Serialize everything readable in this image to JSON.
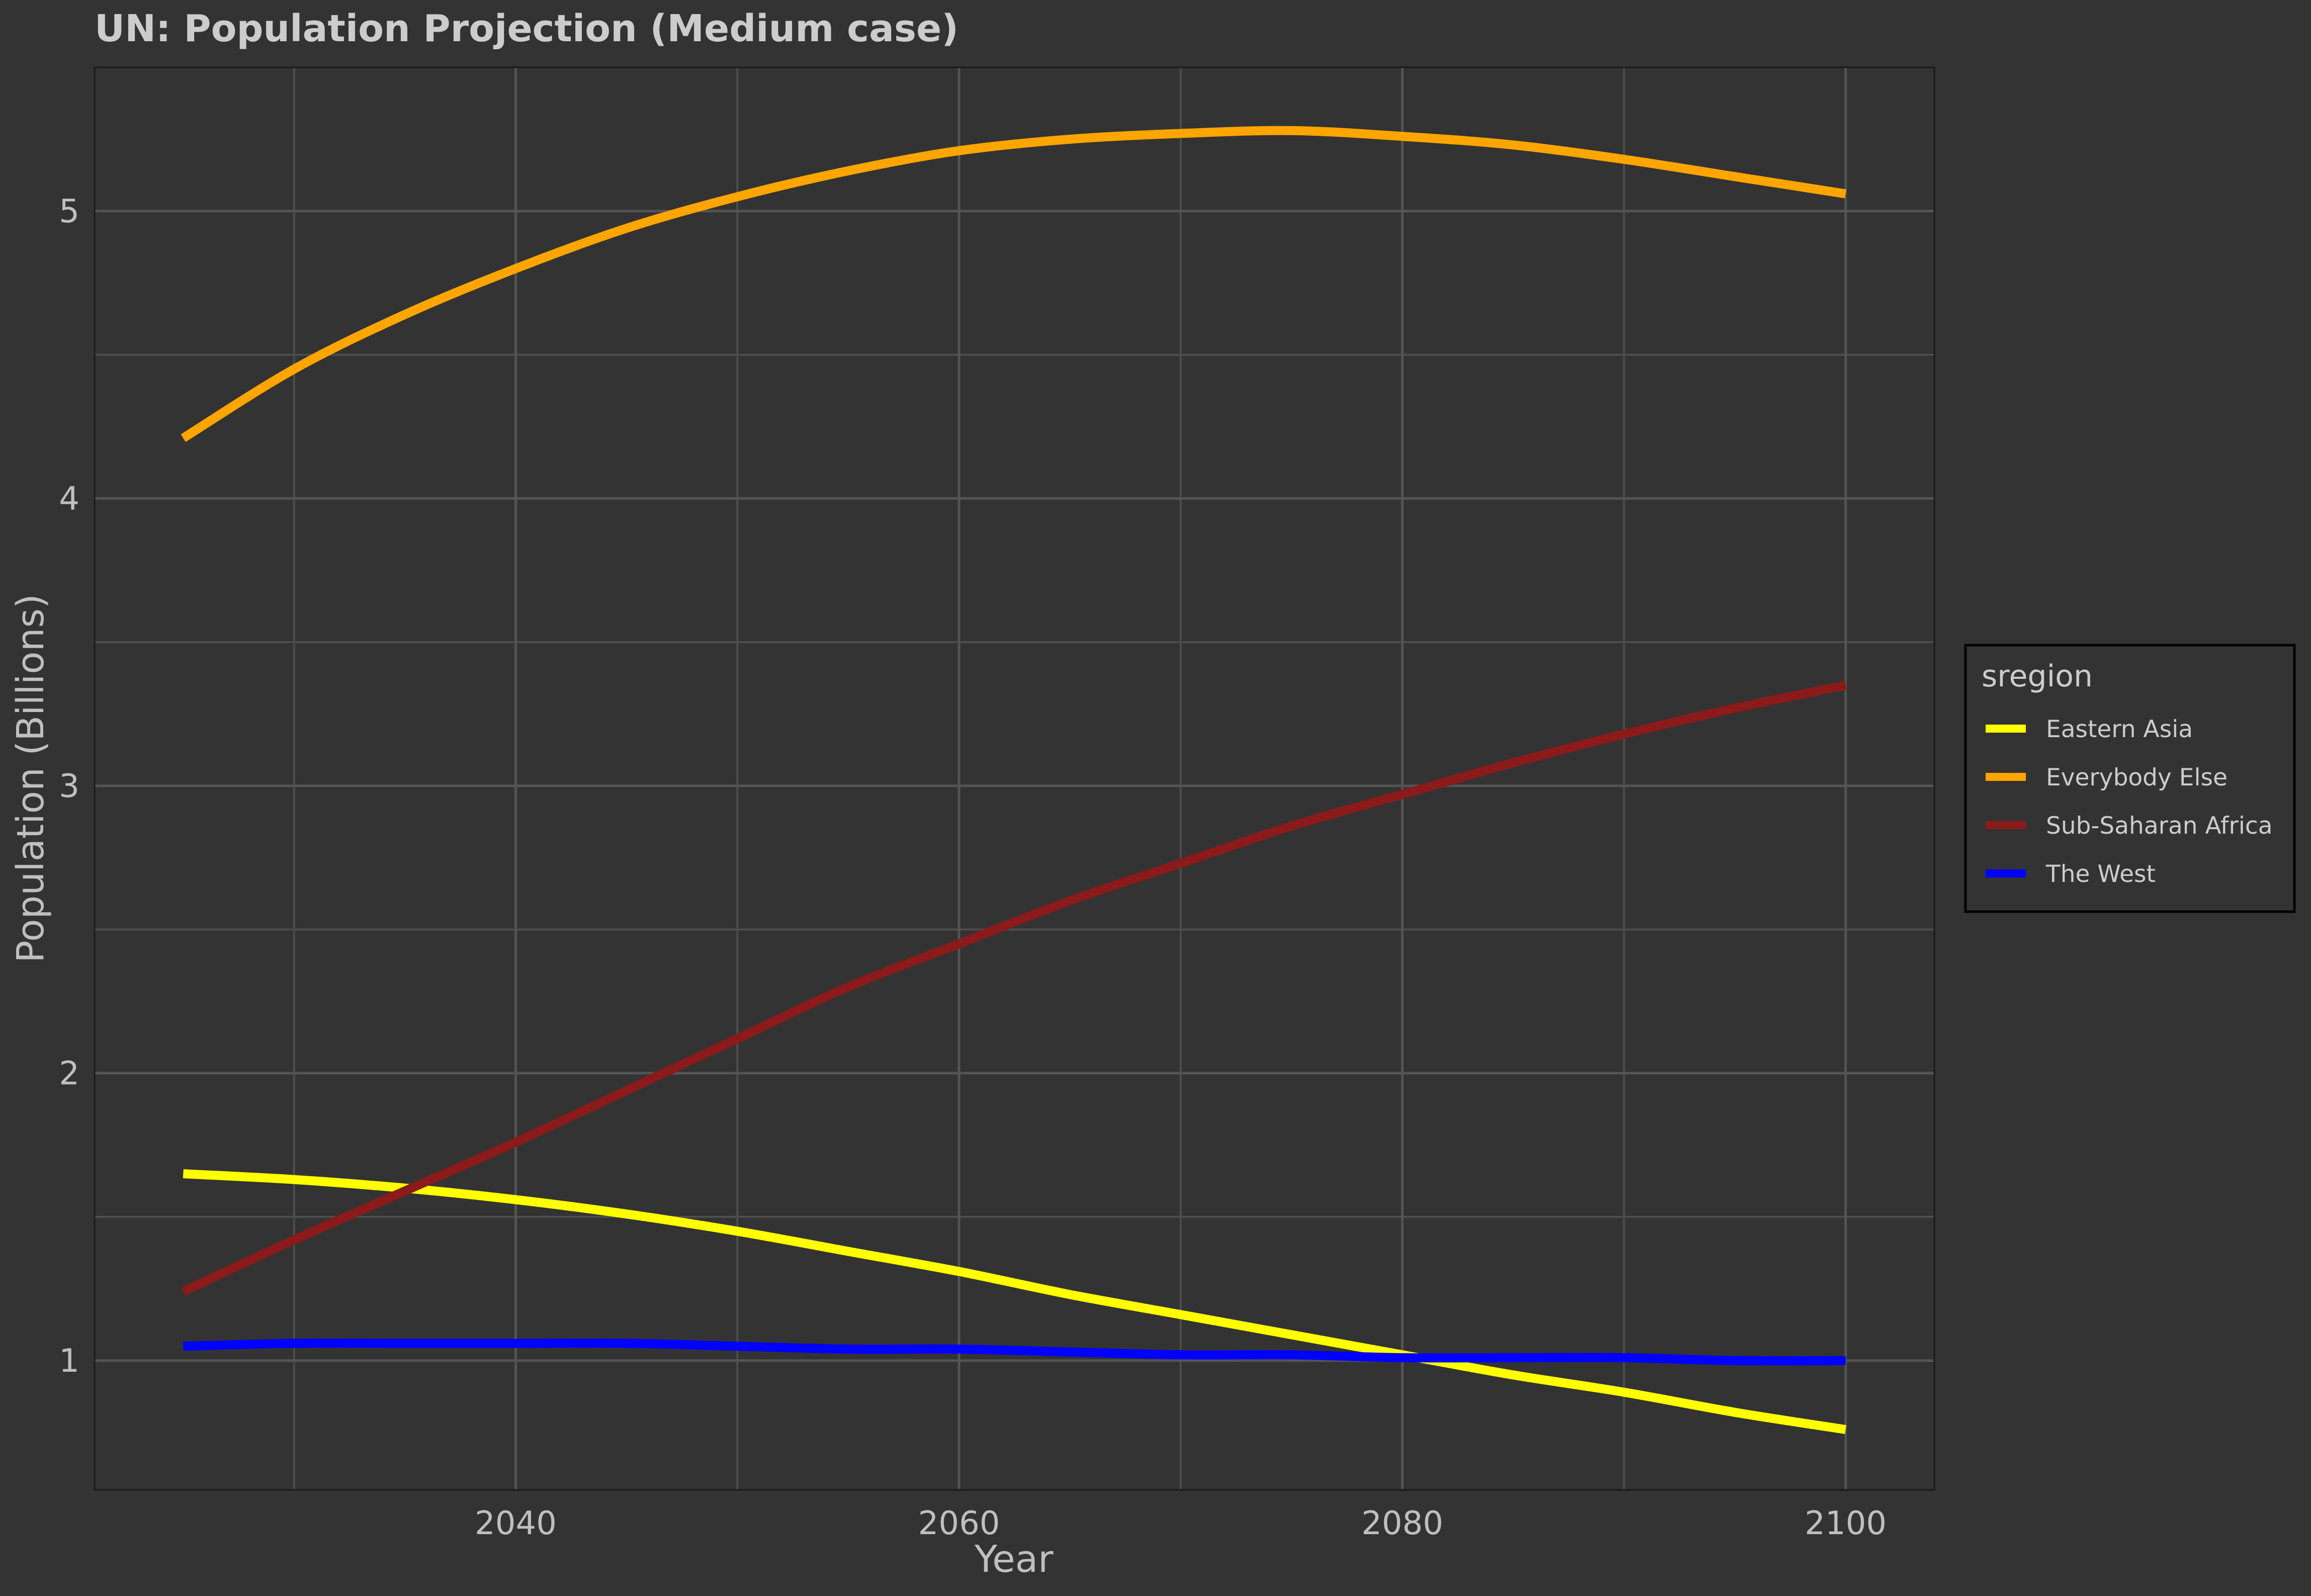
{
  "chart_data": {
    "type": "line",
    "title": "UN: Population Projection (Medium case)",
    "xlabel": "Year",
    "ylabel": "Population (Billions)",
    "xlim": [
      2021,
      2104
    ],
    "ylim": [
      0.55,
      5.5
    ],
    "x_ticks": [
      2040,
      2060,
      2080,
      2100
    ],
    "y_ticks": [
      1,
      2,
      3,
      4,
      5
    ],
    "x_minor": [
      2030,
      2050,
      2070,
      2090
    ],
    "y_minor": [
      1.5,
      2.5,
      3.5,
      4.5
    ],
    "grid": true,
    "legend": {
      "title": "sregion",
      "position": "right"
    },
    "x": [
      2025,
      2030,
      2035,
      2040,
      2045,
      2050,
      2055,
      2060,
      2065,
      2070,
      2075,
      2080,
      2085,
      2090,
      2095,
      2100
    ],
    "series": [
      {
        "name": "Eastern Asia",
        "color": "#ffff00",
        "values": [
          1.65,
          1.63,
          1.6,
          1.56,
          1.51,
          1.45,
          1.38,
          1.31,
          1.23,
          1.16,
          1.09,
          1.02,
          0.95,
          0.89,
          0.82,
          0.76
        ]
      },
      {
        "name": "Everybody Else",
        "color": "#ffa500",
        "values": [
          4.21,
          4.45,
          4.64,
          4.8,
          4.94,
          5.05,
          5.14,
          5.21,
          5.25,
          5.27,
          5.28,
          5.26,
          5.23,
          5.18,
          5.12,
          5.06
        ]
      },
      {
        "name": "Sub-Saharan Africa",
        "color": "#8b1a1a",
        "values": [
          1.24,
          1.42,
          1.59,
          1.76,
          1.94,
          2.12,
          2.3,
          2.45,
          2.6,
          2.73,
          2.86,
          2.97,
          3.08,
          3.18,
          3.27,
          3.35
        ]
      },
      {
        "name": "The West",
        "color": "#0000ff",
        "values": [
          1.05,
          1.06,
          1.06,
          1.06,
          1.06,
          1.05,
          1.04,
          1.04,
          1.03,
          1.02,
          1.02,
          1.01,
          1.01,
          1.01,
          1.0,
          1.0
        ]
      }
    ]
  }
}
